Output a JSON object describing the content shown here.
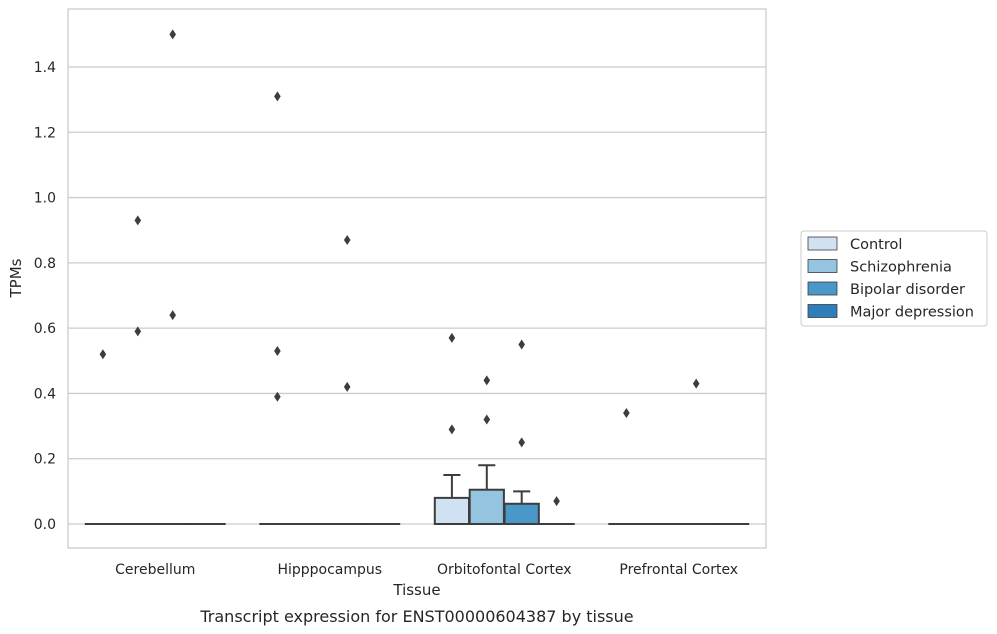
{
  "chart_data": {
    "type": "box",
    "title": "",
    "xlabel": "Tissue",
    "ylabel": "TPMs",
    "caption": "Transcript expression for ENST00000604387 by tissue",
    "ylim": [
      -0.075,
      1.55
    ],
    "yticks": [
      "0.0",
      "0.2",
      "0.4",
      "0.6",
      "0.8",
      "1.0",
      "1.2",
      "1.4"
    ],
    "grid": "horizontal",
    "legend_position": "right",
    "categories": [
      "Cerebellum",
      "Hipppocampus",
      "Orbitofontal Cortex",
      "Prefrontal Cortex"
    ],
    "series": [
      {
        "name": "Control",
        "color": "#d0e1f2",
        "boxes": [
          {
            "q1": 0,
            "median": 0,
            "q3": 0,
            "whisker_low": 0,
            "whisker_high": 0,
            "outliers": [
              0.52
            ]
          },
          {
            "q1": 0,
            "median": 0,
            "q3": 0,
            "whisker_low": 0,
            "whisker_high": 0,
            "outliers": [
              1.31,
              0.53,
              0.39
            ]
          },
          {
            "q1": 0,
            "median": 0,
            "q3": 0.08,
            "whisker_low": 0,
            "whisker_high": 0.15,
            "outliers": [
              0.57,
              0.29
            ]
          },
          {
            "q1": 0,
            "median": 0,
            "q3": 0,
            "whisker_low": 0,
            "whisker_high": 0,
            "outliers": [
              0.34
            ]
          }
        ]
      },
      {
        "name": "Schizophrenia",
        "color": "#94c4df",
        "boxes": [
          {
            "q1": 0,
            "median": 0,
            "q3": 0,
            "whisker_low": 0,
            "whisker_high": 0,
            "outliers": [
              0.93,
              0.59
            ]
          },
          {
            "q1": 0,
            "median": 0,
            "q3": 0,
            "whisker_low": 0,
            "whisker_high": 0,
            "outliers": []
          },
          {
            "q1": 0,
            "median": 0,
            "q3": 0.105,
            "whisker_low": 0,
            "whisker_high": 0.18,
            "outliers": [
              0.44,
              0.32
            ]
          },
          {
            "q1": 0,
            "median": 0,
            "q3": 0,
            "whisker_low": 0,
            "whisker_high": 0,
            "outliers": []
          }
        ]
      },
      {
        "name": "Bipolar disorder",
        "color": "#4a98c9",
        "boxes": [
          {
            "q1": 0,
            "median": 0,
            "q3": 0,
            "whisker_low": 0,
            "whisker_high": 0,
            "outliers": [
              1.5,
              0.64
            ]
          },
          {
            "q1": 0,
            "median": 0,
            "q3": 0,
            "whisker_low": 0,
            "whisker_high": 0,
            "outliers": [
              0.87,
              0.42
            ]
          },
          {
            "q1": 0,
            "median": 0,
            "q3": 0.062,
            "whisker_low": 0,
            "whisker_high": 0.1,
            "outliers": [
              0.55,
              0.25
            ]
          },
          {
            "q1": 0,
            "median": 0,
            "q3": 0,
            "whisker_low": 0,
            "whisker_high": 0,
            "outliers": [
              0.43
            ]
          }
        ]
      },
      {
        "name": "Major depression",
        "color": "#2e7ebc",
        "boxes": [
          {
            "q1": 0,
            "median": 0,
            "q3": 0,
            "whisker_low": 0,
            "whisker_high": 0,
            "outliers": []
          },
          {
            "q1": 0,
            "median": 0,
            "q3": 0,
            "whisker_low": 0,
            "whisker_high": 0,
            "outliers": []
          },
          {
            "q1": 0,
            "median": 0,
            "q3": 0,
            "whisker_low": 0,
            "whisker_high": 0,
            "outliers": [
              0.07
            ]
          },
          {
            "q1": 0,
            "median": 0,
            "q3": 0,
            "whisker_low": 0,
            "whisker_high": 0,
            "outliers": []
          }
        ]
      }
    ]
  }
}
